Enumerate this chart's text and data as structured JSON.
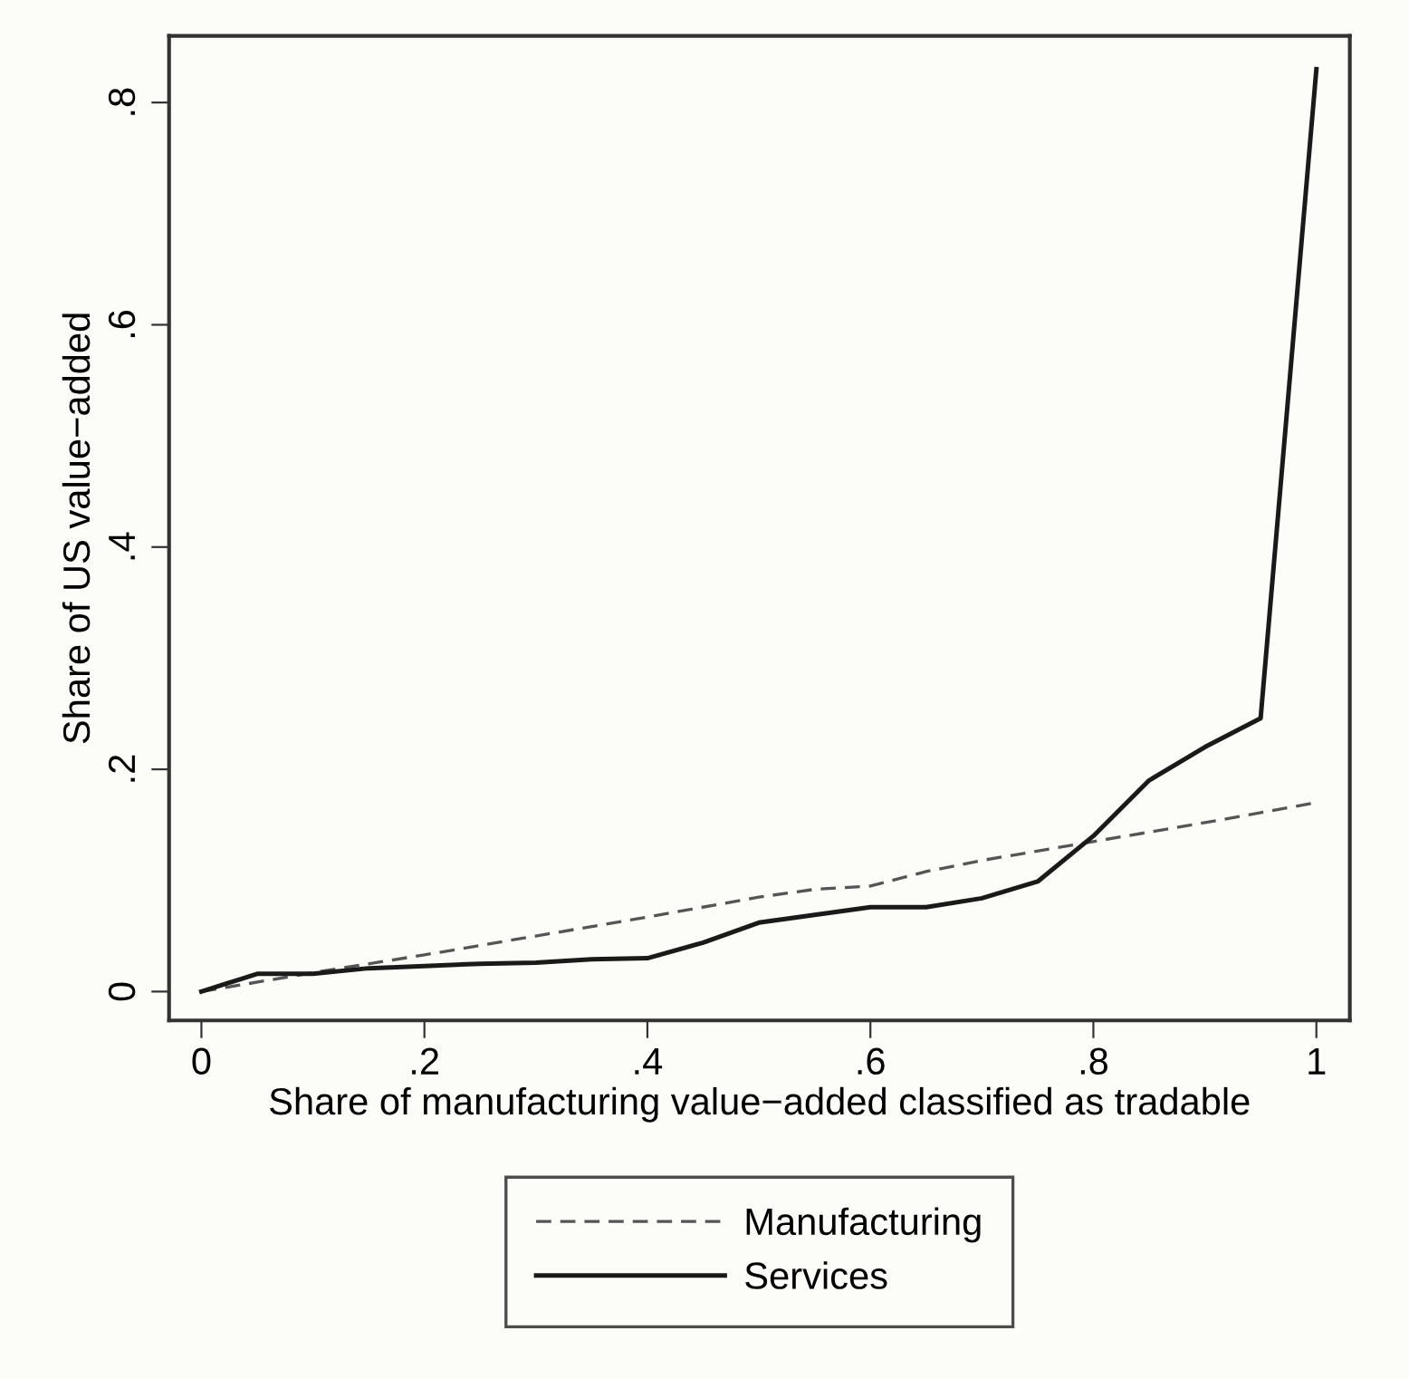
{
  "chart_data": {
    "type": "line",
    "xlabel": "Share of manufacturing value−added classified as tradable",
    "ylabel": "Share of US value−added",
    "xlim": [
      -0.029,
      1.03
    ],
    "ylim": [
      -0.026,
      0.86
    ],
    "xticks": [
      {
        "value": 0,
        "label": "0"
      },
      {
        "value": 0.2,
        "label": ".2"
      },
      {
        "value": 0.4,
        "label": ".4"
      },
      {
        "value": 0.6,
        "label": ".6"
      },
      {
        "value": 0.8,
        "label": ".8"
      },
      {
        "value": 1,
        "label": "1"
      }
    ],
    "yticks": [
      {
        "value": 0,
        "label": "0"
      },
      {
        "value": 0.2,
        "label": ".2"
      },
      {
        "value": 0.4,
        "label": ".4"
      },
      {
        "value": 0.6,
        "label": ".6"
      },
      {
        "value": 0.8,
        "label": ".8"
      }
    ],
    "grid": false,
    "legend": "bottom",
    "marker": "none",
    "series": [
      {
        "name": "Manufacturing",
        "color": "#555555",
        "line_style": "dashed",
        "x": [
          0,
          0.1,
          0.2,
          0.3,
          0.4,
          0.5,
          0.55,
          0.6,
          0.65,
          0.7,
          0.8,
          0.9,
          1
        ],
        "values": [
          0,
          0.017,
          0.033,
          0.05,
          0.067,
          0.085,
          0.092,
          0.095,
          0.108,
          0.118,
          0.135,
          0.152,
          0.17
        ]
      },
      {
        "name": "Services",
        "color": "#1a1a1a",
        "line_style": "solid",
        "x": [
          0,
          0.05,
          0.1,
          0.15,
          0.2,
          0.25,
          0.3,
          0.35,
          0.4,
          0.45,
          0.5,
          0.55,
          0.6,
          0.65,
          0.7,
          0.75,
          0.8,
          0.85,
          0.9,
          0.95,
          1
        ],
        "values": [
          0,
          0.016,
          0.016,
          0.021,
          0.023,
          0.025,
          0.026,
          0.029,
          0.03,
          0.044,
          0.062,
          0.069,
          0.076,
          0.076,
          0.084,
          0.099,
          0.14,
          0.19,
          0.22,
          0.246,
          0.83
        ]
      }
    ]
  }
}
